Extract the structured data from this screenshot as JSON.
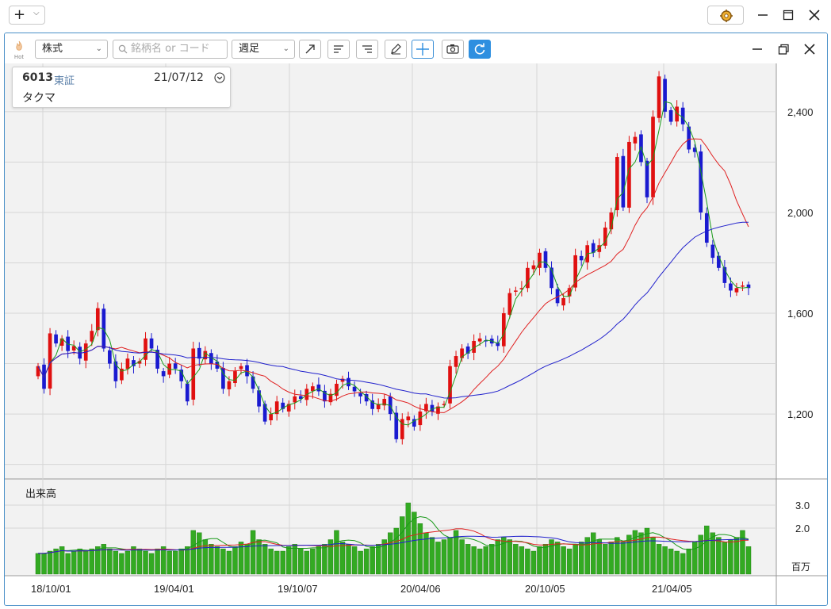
{
  "window": {
    "add_icon": "plus-icon",
    "gear_icon": "gear-icon",
    "controls": [
      "minimize-icon",
      "maximize-icon",
      "close-icon"
    ]
  },
  "toolbar": {
    "hot_label": "Hot",
    "market_select": "株式",
    "search_placeholder": "銘柄名 or コード",
    "period_select": "週足",
    "tools": [
      "trend-line-icon",
      "align-left-icon",
      "align-right-icon",
      "pencil-icon",
      "crosshair-icon",
      "camera-icon",
      "refresh-icon"
    ],
    "accent_color": "#2e8fe0"
  },
  "stock": {
    "code": "6013",
    "market": "東証",
    "date": "21/07/12",
    "name": "タクマ"
  },
  "chart_data": {
    "type": "candlestick",
    "price_axis_ticks": [
      "1,200",
      "1,600",
      "2,000",
      "2,400"
    ],
    "price_ticks_values": [
      1200,
      1600,
      2000,
      2400
    ],
    "price_range": [
      980,
      2560
    ],
    "date_axis_labels": [
      "18/10/01",
      "19/04/01",
      "19/10/07",
      "20/04/06",
      "20/10/05",
      "21/04/05"
    ],
    "volume_title": "出来高",
    "volume_unit": "百万",
    "volume_axis_ticks": [
      "2.0",
      "3.0"
    ],
    "volume_ticks_values": [
      2.0,
      3.0
    ],
    "volume_range": [
      0,
      4.0
    ],
    "up_color": "#e01010",
    "down_color": "#1a1ad0",
    "volume_color": "#33aa22",
    "ma_colors": {
      "short": "#1a9a1a",
      "mid": "#e02020",
      "long": "#2020cc"
    },
    "closes": [
      1390,
      1300,
      1520,
      1480,
      1500,
      1450,
      1470,
      1420,
      1480,
      1530,
      1620,
      1460,
      1400,
      1330,
      1380,
      1420,
      1390,
      1410,
      1500,
      1460,
      1380,
      1350,
      1400,
      1380,
      1330,
      1250,
      1460,
      1420,
      1450,
      1400,
      1380,
      1300,
      1330,
      1370,
      1390,
      1350,
      1300,
      1230,
      1170,
      1200,
      1250,
      1220,
      1240,
      1270,
      1260,
      1300,
      1310,
      1290,
      1250,
      1280,
      1320,
      1340,
      1310,
      1290,
      1270,
      1250,
      1220,
      1240,
      1260,
      1200,
      1100,
      1180,
      1190,
      1150,
      1210,
      1240,
      1210,
      1230,
      1240,
      1390,
      1430,
      1460,
      1440,
      1490,
      1500,
      1490,
      1480,
      1470,
      1600,
      1680,
      1690,
      1700,
      1780,
      1790,
      1840,
      1780,
      1700,
      1640,
      1660,
      1700,
      1830,
      1810,
      1870,
      1840,
      1870,
      1940,
      2000,
      2220,
      2020,
      2280,
      2300,
      2200,
      2060,
      2380,
      2540,
      2400,
      2360,
      2420,
      2350,
      2250,
      2240,
      2000,
      1880,
      1820,
      1780,
      1720,
      1690,
      1700,
      1710,
      1700
    ],
    "volumes": [
      0.9,
      0.9,
      1.0,
      1.1,
      1.2,
      0.9,
      1.0,
      1.1,
      1.0,
      1.1,
      1.2,
      1.3,
      1.1,
      1.0,
      0.9,
      1.0,
      1.2,
      1.1,
      1.0,
      0.9,
      1.1,
      1.2,
      1.0,
      1.0,
      1.1,
      1.2,
      1.9,
      1.8,
      1.5,
      1.3,
      1.2,
      1.1,
      1.0,
      1.2,
      1.4,
      1.3,
      1.9,
      1.5,
      1.3,
      1.1,
      1.0,
      1.0,
      1.2,
      1.3,
      1.1,
      1.0,
      1.1,
      1.2,
      1.3,
      1.5,
      1.9,
      1.4,
      1.3,
      1.2,
      1.0,
      1.1,
      1.2,
      1.3,
      1.5,
      1.8,
      2.0,
      2.5,
      3.1,
      2.7,
      2.2,
      1.8,
      1.6,
      1.4,
      1.5,
      1.6,
      1.9,
      1.5,
      1.3,
      1.2,
      1.1,
      1.2,
      1.3,
      1.5,
      1.6,
      1.5,
      1.3,
      1.2,
      1.1,
      1.0,
      1.2,
      1.3,
      1.5,
      1.4,
      1.2,
      1.1,
      1.3,
      1.4,
      1.6,
      1.8,
      1.5,
      1.3,
      1.4,
      1.6,
      1.4,
      1.7,
      1.9,
      1.8,
      2.0,
      1.6,
      1.3,
      1.2,
      1.1,
      1.0,
      0.9,
      1.1,
      1.4,
      1.7,
      2.1,
      1.8,
      1.6,
      1.4,
      1.5,
      1.6,
      1.9,
      1.2
    ]
  }
}
